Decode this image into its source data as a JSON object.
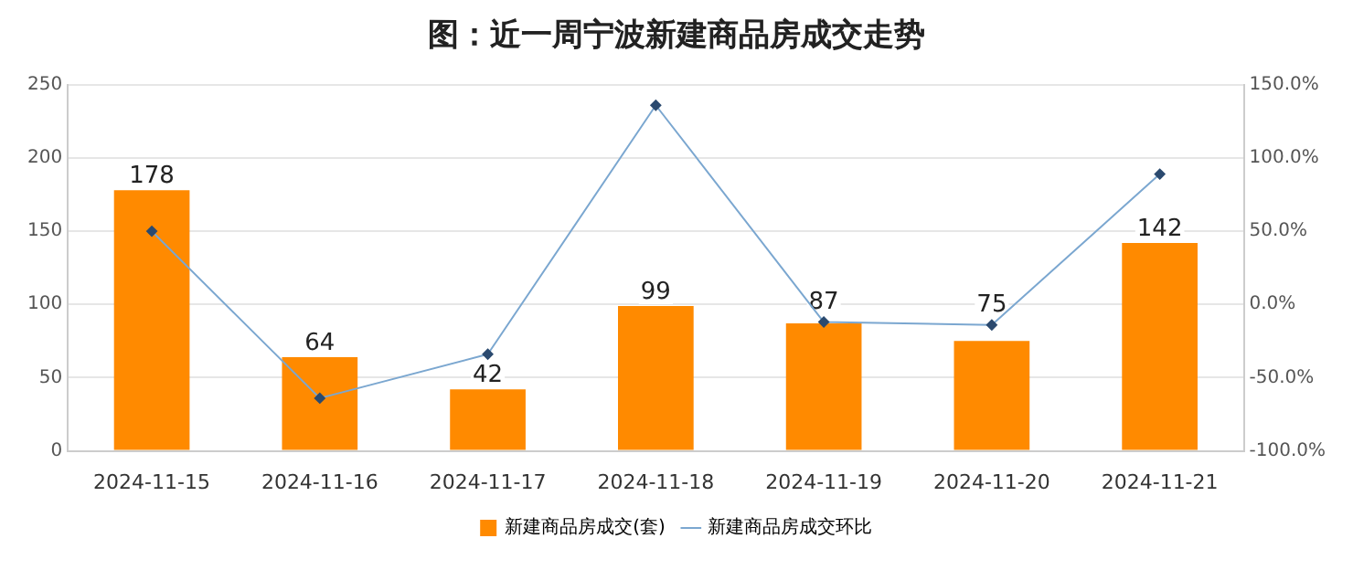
{
  "chart_data": {
    "type": "bar",
    "title": "图：近一周宁波新建商品房成交走势",
    "categories": [
      "2024-11-15",
      "2024-11-16",
      "2024-11-17",
      "2024-11-18",
      "2024-11-19",
      "2024-11-20",
      "2024-11-21"
    ],
    "series": [
      {
        "name": "新建商品房成交(套)",
        "color": "#ff8a00",
        "values": [
          178,
          64,
          42,
          99,
          87,
          75,
          142
        ],
        "value_labels": [
          "178",
          "64",
          "42",
          "99",
          "87",
          "75",
          "142"
        ]
      },
      {
        "name": "新建商品房成交环比",
        "type": "line",
        "axis": "y2",
        "color": "#7ba7d0",
        "marker": "diamond",
        "values": [
          50,
          -64,
          -34,
          136,
          -12,
          -14,
          89
        ]
      }
    ],
    "ylim": [
      0,
      250
    ],
    "yticks": [
      0,
      50,
      100,
      150,
      200,
      250
    ],
    "y2lim": [
      -100,
      150
    ],
    "y2ticks": [
      {
        "value": -100,
        "label": "-100.0%"
      },
      {
        "value": -50,
        "label": "-50.0%"
      },
      {
        "value": 0,
        "label": "0.0%"
      },
      {
        "value": 50,
        "label": "50.0%"
      },
      {
        "value": 100,
        "label": "100.0%"
      },
      {
        "value": 150,
        "label": "150.0%"
      }
    ],
    "grid": "y",
    "legend": "bottom"
  }
}
